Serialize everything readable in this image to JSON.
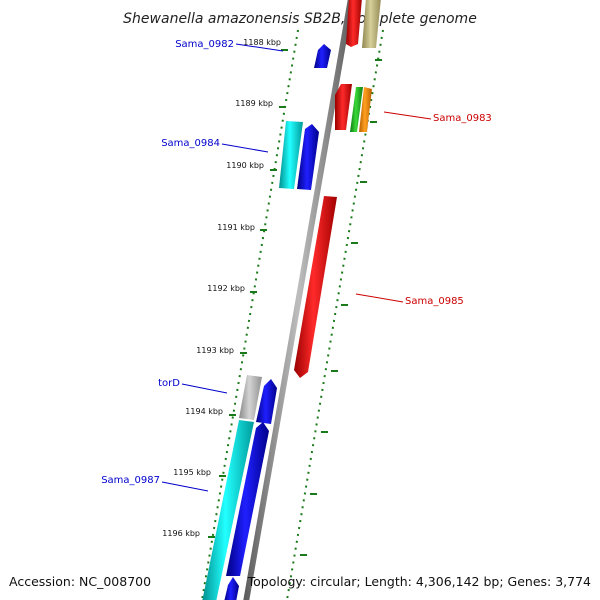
{
  "title": "Shewanella amazonensis SB2B, complete genome",
  "footer": {
    "accession": "Accession: NC_008700",
    "summary": "Topology: circular; Length: 4,306,142 bp; Genes: 3,774"
  },
  "colors": {
    "forward_label": "#0000cc",
    "reverse_label": "#cc0000",
    "backbone": "#8a8a8a",
    "tick": "#1a7a1a"
  },
  "ticks": [
    {
      "label": "1188 kbp"
    },
    {
      "label": "1189 kbp"
    },
    {
      "label": "1190 kbp"
    },
    {
      "label": "1191 kbp"
    },
    {
      "label": "1192 kbp"
    },
    {
      "label": "1193 kbp"
    },
    {
      "label": "1194 kbp"
    },
    {
      "label": "1195 kbp"
    },
    {
      "label": "1196 kbp"
    }
  ],
  "gene_labels": {
    "forward": [
      "Sama_0982",
      "Sama_0984",
      "torD",
      "Sama_0987"
    ],
    "reverse": [
      "Sama_0983",
      "Sama_0985"
    ]
  }
}
